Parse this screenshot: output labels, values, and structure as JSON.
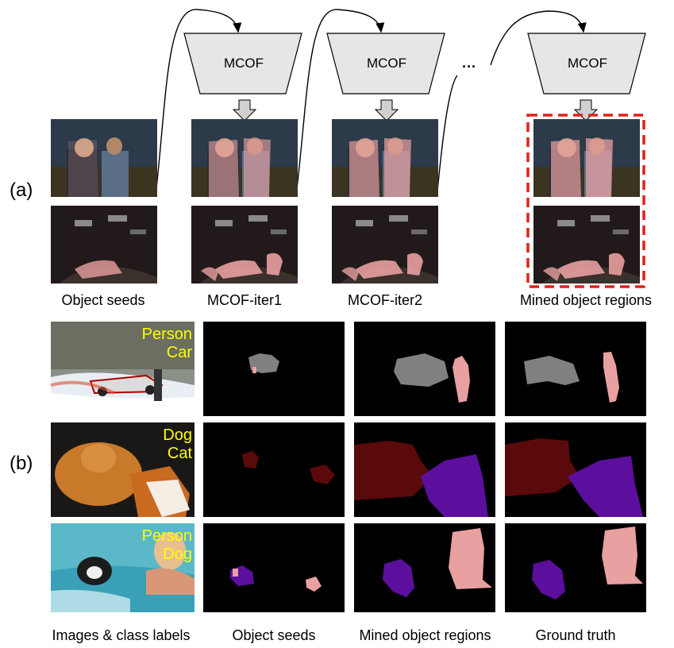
{
  "panel_a": {
    "label": "(a)",
    "module_label": "MCOF",
    "ellipsis": "···",
    "captions": [
      "Object seeds",
      "MCOF-iter1",
      "MCOF-iter2",
      "Mined object regions"
    ]
  },
  "panel_b": {
    "label": "(b)",
    "rows": [
      {
        "labels": [
          "Person",
          "Car"
        ]
      },
      {
        "labels": [
          "Dog",
          "Cat"
        ]
      },
      {
        "labels": [
          "Person",
          "Dog"
        ]
      }
    ],
    "captions": [
      "Images & class labels",
      "Object seeds",
      "Mined object regions",
      "Ground truth"
    ]
  },
  "colors": {
    "module_fill": "#e6e6e6",
    "highlight_border": "#e0201c",
    "person_mask": "#e8a0a0",
    "car_mask": "#808080",
    "dog_mask": "#5b0f9c",
    "cat_mask": "#5a0a0a"
  }
}
